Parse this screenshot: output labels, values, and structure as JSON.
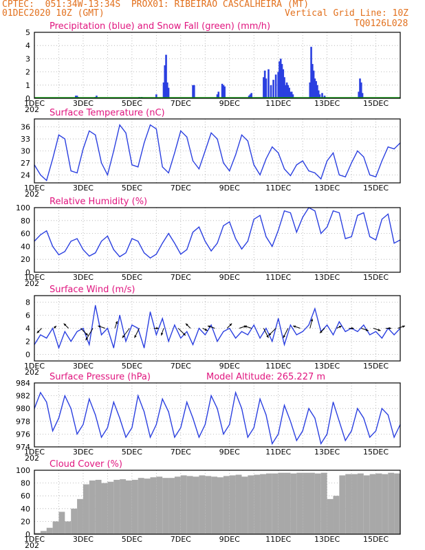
{
  "header": {
    "line1": "CPTEC:  051:34W-13:34S  PROX01: RIBEIRAO CASCALHEIRA (MT)",
    "line2_left": "01DEC2020 10Z (GMT)",
    "line2_right": "Vertical Grid Line: 10Z",
    "line3_right": "TQ0126L028"
  },
  "colors": {
    "header_text": "#e2701d",
    "panel_title": "#e0147e",
    "line": "#2a3fe0",
    "snow": "#12a012",
    "cloud": "#a8a8a8",
    "grid": "#aaaaaa"
  },
  "chart_data": [
    {
      "id": "precip",
      "type": "bar",
      "title": "Precipitation (blue) and Snow Fall (green) (mm/h)",
      "ylim": [
        0,
        5
      ],
      "yticks": [
        "0",
        "1",
        "2",
        "3",
        "4",
        "5"
      ],
      "grid": true,
      "series": [
        {
          "name": "Precipitation",
          "x_day": [
            2.7,
            2.75,
            2.8,
            3.5,
            3.55,
            5.3,
            5.4,
            6.0,
            6.3,
            6.35,
            6.4,
            6.45,
            6.5,
            7.5,
            7.55,
            8.5,
            8.55,
            8.7,
            8.75,
            8.8,
            9.8,
            9.85,
            9.9,
            10.4,
            10.45,
            10.5,
            10.6,
            10.7,
            10.8,
            10.9,
            11.0,
            11.05,
            11.1,
            11.15,
            11.2,
            11.25,
            11.3,
            11.35,
            11.4,
            11.45,
            11.5,
            11.55,
            11.6,
            12.3,
            12.35,
            12.4,
            12.45,
            12.5,
            12.55,
            12.6,
            12.65,
            12.7,
            12.8,
            12.9,
            14.3,
            14.35,
            14.4,
            14.45
          ],
          "values": [
            0.2,
            0.2,
            0.1,
            0.1,
            0.2,
            0.1,
            0.1,
            0.3,
            1.2,
            2.5,
            3.3,
            1.2,
            0.8,
            1.0,
            1.0,
            0.3,
            0.5,
            1.1,
            1.0,
            0.9,
            0.2,
            0.3,
            0.4,
            1.6,
            2.1,
            1.5,
            2.2,
            1.0,
            1.4,
            1.8,
            2.0,
            2.8,
            3.0,
            2.6,
            2.2,
            1.6,
            1.0,
            1.2,
            1.0,
            0.8,
            0.5,
            0.5,
            0.3,
            1.2,
            3.9,
            2.6,
            2.1,
            1.5,
            1.3,
            1.0,
            0.6,
            0.3,
            0.4,
            0.2,
            0.5,
            1.5,
            1.2,
            0.4
          ]
        },
        {
          "name": "Snow Fall",
          "x_day": [],
          "values": []
        }
      ]
    },
    {
      "id": "temp",
      "type": "line",
      "title": "Surface Temperature (nC)",
      "ylim": [
        22,
        38
      ],
      "yticks": [
        "24",
        "27",
        "30",
        "33",
        "36"
      ],
      "ytick_values": [
        24,
        27,
        30,
        33,
        36
      ],
      "grid": true,
      "x_day": [
        1.0,
        1.25,
        1.5,
        1.75,
        2.0,
        2.25,
        2.5,
        2.75,
        3.0,
        3.25,
        3.5,
        3.75,
        4.0,
        4.25,
        4.5,
        4.75,
        5.0,
        5.25,
        5.5,
        5.75,
        6.0,
        6.25,
        6.5,
        6.75,
        7.0,
        7.25,
        7.5,
        7.75,
        8.0,
        8.25,
        8.5,
        8.75,
        9.0,
        9.25,
        9.5,
        9.75,
        10.0,
        10.25,
        10.5,
        10.75,
        11.0,
        11.25,
        11.5,
        11.75,
        12.0,
        12.25,
        12.5,
        12.75,
        13.0,
        13.25,
        13.5,
        13.75,
        14.0,
        14.25,
        14.5,
        14.75,
        15.0,
        15.25,
        15.5,
        15.75,
        16.0
      ],
      "values": [
        26.5,
        24.0,
        22.6,
        28.0,
        34.0,
        33.0,
        25.0,
        24.5,
        30.5,
        35.0,
        34.0,
        27.0,
        24.0,
        30.0,
        36.5,
        34.5,
        26.5,
        26.0,
        32.0,
        36.5,
        35.5,
        26.0,
        24.5,
        29.5,
        35.0,
        33.5,
        27.5,
        25.5,
        30.0,
        34.5,
        33.0,
        27.0,
        25.0,
        29.0,
        34.0,
        32.5,
        26.5,
        24.0,
        28.0,
        31.0,
        29.5,
        25.5,
        23.8,
        26.5,
        27.5,
        25.0,
        24.5,
        23.0,
        27.5,
        29.5,
        24.0,
        23.5,
        27.0,
        30.0,
        28.5,
        24.0,
        23.5,
        27.5,
        31.0,
        30.5,
        32.0
      ]
    },
    {
      "id": "rh",
      "type": "line",
      "title": "Relative Humidity (%)",
      "ylim": [
        0,
        100
      ],
      "yticks": [
        "0",
        "20",
        "40",
        "60",
        "80",
        "100"
      ],
      "grid": true,
      "x_day": [
        1.0,
        1.25,
        1.5,
        1.75,
        2.0,
        2.25,
        2.5,
        2.75,
        3.0,
        3.25,
        3.5,
        3.75,
        4.0,
        4.25,
        4.5,
        4.75,
        5.0,
        5.25,
        5.5,
        5.75,
        6.0,
        6.25,
        6.5,
        6.75,
        7.0,
        7.25,
        7.5,
        7.75,
        8.0,
        8.25,
        8.5,
        8.75,
        9.0,
        9.25,
        9.5,
        9.75,
        10.0,
        10.25,
        10.5,
        10.75,
        11.0,
        11.25,
        11.5,
        11.75,
        12.0,
        12.25,
        12.5,
        12.75,
        13.0,
        13.25,
        13.5,
        13.75,
        14.0,
        14.25,
        14.5,
        14.75,
        15.0,
        15.25,
        15.5,
        15.75,
        16.0
      ],
      "values": [
        48,
        58,
        64,
        40,
        27,
        32,
        48,
        52,
        35,
        25,
        30,
        48,
        56,
        35,
        24,
        30,
        52,
        48,
        30,
        22,
        28,
        45,
        60,
        45,
        28,
        35,
        62,
        70,
        48,
        33,
        45,
        72,
        78,
        52,
        36,
        48,
        82,
        88,
        55,
        40,
        65,
        95,
        92,
        62,
        85,
        100,
        95,
        60,
        70,
        95,
        92,
        52,
        55,
        88,
        92,
        55,
        50,
        82,
        90,
        45,
        50
      ]
    },
    {
      "id": "wind",
      "type": "line",
      "title": "Surface Wind (m/s)",
      "ylim": [
        -1,
        9
      ],
      "yticks": [
        "0",
        "2",
        "4",
        "6",
        "8"
      ],
      "ytick_values": [
        0,
        2,
        4,
        6,
        8
      ],
      "grid": true,
      "x_day": [
        1.0,
        1.25,
        1.5,
        1.75,
        2.0,
        2.25,
        2.5,
        2.75,
        3.0,
        3.25,
        3.5,
        3.75,
        4.0,
        4.25,
        4.5,
        4.75,
        5.0,
        5.25,
        5.5,
        5.75,
        6.0,
        6.25,
        6.5,
        6.75,
        7.0,
        7.25,
        7.5,
        7.75,
        8.0,
        8.25,
        8.5,
        8.75,
        9.0,
        9.25,
        9.5,
        9.75,
        10.0,
        10.25,
        10.5,
        10.75,
        11.0,
        11.25,
        11.5,
        11.75,
        12.0,
        12.25,
        12.5,
        12.75,
        13.0,
        13.25,
        13.5,
        13.75,
        14.0,
        14.25,
        14.5,
        14.75,
        15.0,
        15.25,
        15.5,
        15.75,
        16.0
      ],
      "values": [
        1.5,
        3.0,
        2.5,
        4.0,
        1.0,
        3.5,
        2.0,
        3.5,
        4.0,
        1.5,
        7.5,
        3.0,
        4.0,
        1.0,
        6.0,
        2.0,
        4.5,
        4.0,
        1.0,
        6.5,
        3.0,
        5.5,
        2.0,
        4.5,
        2.5,
        3.5,
        1.5,
        4.0,
        3.0,
        4.5,
        2.0,
        3.5,
        4.0,
        2.5,
        3.5,
        3.0,
        4.5,
        2.5,
        4.0,
        2.0,
        5.5,
        1.5,
        4.5,
        3.0,
        3.5,
        4.5,
        7.0,
        3.5,
        4.5,
        3.0,
        5.0,
        3.5,
        4.0,
        3.5,
        4.5,
        3.0,
        3.5,
        2.5,
        4.0,
        3.0,
        4.0
      ],
      "vectors": {
        "x_day": [
          1.3,
          1.8,
          2.4,
          2.9,
          3.4,
          3.9,
          4.3,
          4.9,
          5.3,
          5.9,
          6.3,
          6.9,
          7.4,
          7.9,
          8.4,
          8.9,
          9.4,
          9.9,
          10.4,
          10.9,
          11.4,
          11.9,
          12.3,
          12.9,
          13.4,
          13.9,
          14.4,
          14.9,
          15.4,
          15.9
        ],
        "u": [
          -1,
          0.5,
          -1,
          1.5,
          -1.5,
          -1.5,
          0.5,
          -1.5,
          -1,
          1,
          -0.5,
          1.5,
          -1,
          1,
          -1.5,
          1,
          1.5,
          -1.5,
          1,
          -1.5,
          -1,
          -1.5,
          0.5,
          -1,
          1,
          1,
          1.5,
          1.5,
          1.2,
          1.5
        ],
        "v": [
          -1,
          0.5,
          1,
          -1.5,
          -2.5,
          0.5,
          1.5,
          -2,
          -2,
          0,
          -1.5,
          -1.5,
          1,
          -0.5,
          0.5,
          1,
          0.5,
          0.5,
          -2,
          -1.5,
          -2,
          0.5,
          2,
          -1,
          0.5,
          0,
          -0.5,
          -0.5,
          0,
          0.5
        ]
      }
    },
    {
      "id": "pres",
      "type": "line",
      "title": "Surface Pressure (hPa)",
      "annotation": "Model Altitude: 265.227 m",
      "ylim": [
        974,
        984
      ],
      "yticks": [
        "974",
        "976",
        "978",
        "980",
        "982",
        "984"
      ],
      "grid": true,
      "x_day": [
        1.0,
        1.25,
        1.5,
        1.75,
        2.0,
        2.25,
        2.5,
        2.75,
        3.0,
        3.25,
        3.5,
        3.75,
        4.0,
        4.25,
        4.5,
        4.75,
        5.0,
        5.25,
        5.5,
        5.75,
        6.0,
        6.25,
        6.5,
        6.75,
        7.0,
        7.25,
        7.5,
        7.75,
        8.0,
        8.25,
        8.5,
        8.75,
        9.0,
        9.25,
        9.5,
        9.75,
        10.0,
        10.25,
        10.5,
        10.75,
        11.0,
        11.25,
        11.5,
        11.75,
        12.0,
        12.25,
        12.5,
        12.75,
        13.0,
        13.25,
        13.5,
        13.75,
        14.0,
        14.25,
        14.5,
        14.75,
        15.0,
        15.25,
        15.5,
        15.75,
        16.0
      ],
      "values": [
        980.0,
        982.5,
        981.0,
        976.5,
        978.5,
        982.0,
        980.0,
        976.0,
        977.5,
        981.5,
        979.0,
        975.5,
        977.0,
        981.0,
        978.5,
        975.5,
        977.0,
        982.0,
        979.5,
        975.5,
        977.5,
        981.5,
        979.5,
        975.5,
        977.0,
        981.0,
        978.5,
        975.5,
        977.5,
        982.0,
        980.0,
        976.0,
        977.5,
        982.5,
        980.0,
        975.5,
        977.0,
        981.5,
        979.0,
        974.5,
        976.0,
        980.5,
        978.0,
        975.0,
        976.5,
        980.0,
        978.5,
        974.5,
        976.0,
        981.0,
        978.0,
        975.0,
        976.5,
        980.0,
        978.5,
        975.5,
        976.5,
        980.0,
        979.0,
        975.5,
        977.5
      ]
    },
    {
      "id": "cloud",
      "type": "area",
      "title": "Cloud Cover (%)",
      "ylim": [
        0,
        100
      ],
      "yticks": [
        "0",
        "20",
        "40",
        "60",
        "80",
        "100"
      ],
      "grid": true,
      "x_day": [
        1.0,
        1.25,
        1.5,
        1.75,
        2.0,
        2.25,
        2.5,
        2.75,
        3.0,
        3.25,
        3.5,
        3.75,
        4.0,
        4.25,
        4.5,
        4.75,
        5.0,
        5.25,
        5.5,
        5.75,
        6.0,
        6.25,
        6.5,
        6.75,
        7.0,
        7.25,
        7.5,
        7.75,
        8.0,
        8.25,
        8.5,
        8.75,
        9.0,
        9.25,
        9.5,
        9.75,
        10.0,
        10.25,
        10.5,
        10.75,
        11.0,
        11.25,
        11.5,
        11.75,
        12.0,
        12.25,
        12.5,
        12.75,
        13.0,
        13.25,
        13.5,
        13.75,
        14.0,
        14.25,
        14.5,
        14.75,
        15.0,
        15.25,
        15.5,
        15.75,
        16.0
      ],
      "values": [
        2,
        5,
        10,
        20,
        35,
        20,
        40,
        55,
        78,
        84,
        85,
        80,
        82,
        85,
        86,
        84,
        85,
        88,
        87,
        89,
        90,
        88,
        88,
        90,
        92,
        91,
        90,
        92,
        91,
        90,
        89,
        91,
        92,
        93,
        90,
        92,
        93,
        94,
        95,
        95,
        96,
        96,
        95,
        96,
        96,
        96,
        95,
        96,
        55,
        60,
        92,
        94,
        94,
        95,
        92,
        94,
        95,
        94,
        96,
        95,
        95
      ]
    }
  ],
  "x_axis": {
    "labels": [
      "1DEC",
      "3DEC",
      "5DEC",
      "7DEC",
      "9DEC",
      "11DEC",
      "13DEC",
      "15DEC"
    ],
    "label_days": [
      1,
      3,
      5,
      7,
      9,
      11,
      13,
      15
    ],
    "range": [
      1,
      16
    ],
    "year_stub": "202"
  }
}
